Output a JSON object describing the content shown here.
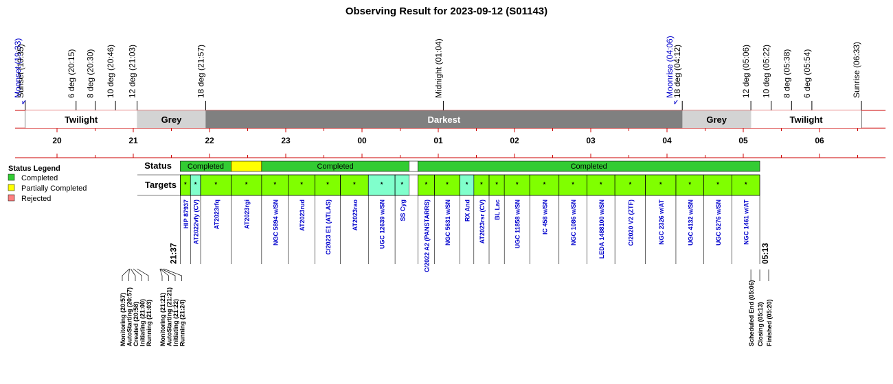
{
  "chart_data": {
    "type": "timeline",
    "title": "Observing Result for 2023-09-12 (S01143)",
    "events": [
      {
        "label": "Moonset (19:33)",
        "time": "19:33",
        "color": "#0000cc"
      },
      {
        "label": "Sunset (19:35)",
        "time": "19:35",
        "color": "#000000"
      },
      {
        "label": "6 deg (20:15)",
        "time": "20:15",
        "color": "#000000"
      },
      {
        "label": "8 deg (20:30)",
        "time": "20:30",
        "color": "#000000"
      },
      {
        "label": "10 deg (20:46)",
        "time": "20:46",
        "color": "#000000"
      },
      {
        "label": "12 deg (21:03)",
        "time": "21:03",
        "color": "#000000"
      },
      {
        "label": "18 deg (21:57)",
        "time": "21:57",
        "color": "#000000"
      },
      {
        "label": "Midnight (01:04)",
        "time": "01:04",
        "color": "#000000"
      },
      {
        "label": "Moonrise (04:06)",
        "time": "04:06",
        "color": "#0000cc"
      },
      {
        "label": "18 deg (04:12)",
        "time": "04:12",
        "color": "#000000"
      },
      {
        "label": "12 deg (05:06)",
        "time": "05:06",
        "color": "#000000"
      },
      {
        "label": "10 deg (05:22)",
        "time": "05:22",
        "color": "#000000"
      },
      {
        "label": "8 deg (05:38)",
        "time": "05:38",
        "color": "#000000"
      },
      {
        "label": "6 deg (05:54)",
        "time": "05:54",
        "color": "#000000"
      },
      {
        "label": "Sunrise (06:33)",
        "time": "06:33",
        "color": "#000000"
      }
    ],
    "bands": [
      {
        "label": "Twilight",
        "start": "19:35",
        "end": "21:03",
        "color": "#ffffff",
        "text_color": "#000000"
      },
      {
        "label": "Grey",
        "start": "21:03",
        "end": "21:57",
        "color": "#d3d3d3",
        "text_color": "#000000"
      },
      {
        "label": "Darkest",
        "start": "21:57",
        "end": "04:12",
        "color": "#808080",
        "text_color": "#ffffff"
      },
      {
        "label": "Grey",
        "start": "04:12",
        "end": "05:06",
        "color": "#d3d3d3",
        "text_color": "#000000"
      },
      {
        "label": "Twilight",
        "start": "05:06",
        "end": "06:33",
        "color": "#ffffff",
        "text_color": "#000000"
      }
    ],
    "hours": [
      "20",
      "21",
      "22",
      "23",
      "00",
      "01",
      "02",
      "03",
      "04",
      "05",
      "06"
    ],
    "axis_range": [
      "19:27",
      "06:52"
    ],
    "status_row_label": "Status",
    "targets_row_label": "Targets",
    "status": [
      {
        "label": "Completed",
        "start": "21:37",
        "end": "22:17",
        "color": "#33cc33"
      },
      {
        "label": "",
        "start": "22:17",
        "end": "22:41",
        "color": "#ffff00"
      },
      {
        "label": "Completed",
        "start": "22:41",
        "end": "00:37",
        "color": "#33cc33"
      },
      {
        "label": "",
        "start": "00:37",
        "end": "00:44",
        "color": "#ffffff"
      },
      {
        "label": "Completed",
        "start": "00:44",
        "end": "05:13",
        "color": "#33cc33"
      }
    ],
    "targets": [
      {
        "name": "HIP 87937",
        "start": "21:37",
        "end": "21:45",
        "color": "#80ff00"
      },
      {
        "name": "AT2022vfy (CV)",
        "start": "21:45",
        "end": "21:53",
        "color": "#80ffcc"
      },
      {
        "name": "AT2023rfq",
        "start": "21:53",
        "end": "22:17",
        "color": "#80ff00"
      },
      {
        "name": "AT2023rgi",
        "start": "22:17",
        "end": "22:41",
        "color": "#80ff00"
      },
      {
        "name": "NGC 5894 w/SN",
        "start": "22:41",
        "end": "23:02",
        "color": "#80ff00"
      },
      {
        "name": "AT2023rud",
        "start": "23:02",
        "end": "23:23",
        "color": "#80ff00"
      },
      {
        "name": "C/2023 E1 (ATLAS)",
        "start": "23:23",
        "end": "23:43",
        "color": "#80ff00"
      },
      {
        "name": "AT2023rao",
        "start": "23:43",
        "end": "00:05",
        "color": "#80ff00"
      },
      {
        "name": "UGC 12639 w/SN",
        "start": "00:05",
        "end": "00:26",
        "color": "#80ffcc"
      },
      {
        "name": "SS Cyg",
        "start": "00:26",
        "end": "00:37",
        "color": "#80ffcc"
      },
      {
        "name": "C/2022 A2 (PANSTARRS)",
        "start": "00:44",
        "end": "00:57",
        "color": "#80ff00"
      },
      {
        "name": "NGC 5631 w/SN",
        "start": "00:57",
        "end": "01:17",
        "color": "#80ff00"
      },
      {
        "name": "RX And",
        "start": "01:17",
        "end": "01:28",
        "color": "#80ffcc"
      },
      {
        "name": "AT2023rsr (CV)",
        "start": "01:28",
        "end": "01:40",
        "color": "#80ff00"
      },
      {
        "name": "BL Lac",
        "start": "01:40",
        "end": "01:52",
        "color": "#80ff00"
      },
      {
        "name": "UGC 11858 w/SN",
        "start": "01:52",
        "end": "02:12",
        "color": "#80ff00"
      },
      {
        "name": "IC 458 w/SN",
        "start": "02:12",
        "end": "02:35",
        "color": "#80ff00"
      },
      {
        "name": "NGC 1086 w/SN",
        "start": "02:35",
        "end": "02:57",
        "color": "#80ff00"
      },
      {
        "name": "LEDA 1488100 w/SN",
        "start": "02:57",
        "end": "03:19",
        "color": "#80ff00"
      },
      {
        "name": "C/2020 V2 (ZTF)",
        "start": "03:19",
        "end": "03:43",
        "color": "#80ff00"
      },
      {
        "name": "NGC 2326 w/AT",
        "start": "03:43",
        "end": "04:07",
        "color": "#80ff00"
      },
      {
        "name": "UGC 4132 w/SN",
        "start": "04:07",
        "end": "04:29",
        "color": "#80ff00"
      },
      {
        "name": "UGC 5276 w/SN",
        "start": "04:29",
        "end": "04:51",
        "color": "#80ff00"
      },
      {
        "name": "NGC 1461 w/AT",
        "start": "04:51",
        "end": "05:13",
        "color": "#80ff00"
      }
    ],
    "target_marker": "*",
    "range_start_label": "21:37",
    "range_end_label": "05:13",
    "log_events": [
      {
        "label": "Monitoring (20:57)",
        "time": "20:57"
      },
      {
        "label": "AutoStarting (20:57)",
        "time": "20:57"
      },
      {
        "label": "Created (20:58)",
        "time": "20:58"
      },
      {
        "label": "Initiating (21:00)",
        "time": "21:00"
      },
      {
        "label": "Running (21:03)",
        "time": "21:03"
      },
      {
        "label": "Monitoring (21:21)",
        "time": "21:21"
      },
      {
        "label": "AutoStarting (21:21)",
        "time": "21:21"
      },
      {
        "label": "Initiating (21:22)",
        "time": "21:22"
      },
      {
        "label": "Running (21:24)",
        "time": "21:24"
      },
      {
        "label": "Scheduled End (05:06)",
        "time": "05:06"
      },
      {
        "label": "Closing (05:13)",
        "time": "05:13"
      },
      {
        "label": "Finished (05:20)",
        "time": "05:20"
      }
    ],
    "legend": {
      "title": "Status Legend",
      "items": [
        {
          "label": "Completed",
          "color": "#33cc33"
        },
        {
          "label": "Partially Completed",
          "color": "#ffff00"
        },
        {
          "label": "Rejected",
          "color": "#ff7f7f"
        }
      ]
    }
  }
}
